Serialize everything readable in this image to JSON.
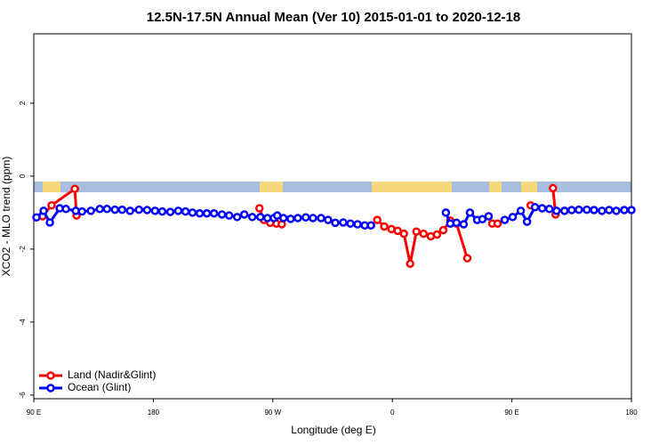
{
  "chart_data": {
    "type": "line",
    "title": "12.5N-17.5N Annual Mean (Ver 10)   2015-01-01 to 2020-12-18",
    "xlabel": "Longitude (deg E)",
    "ylabel": "XCO2 - MLO trend (ppm)",
    "xlim": [
      90,
      540
    ],
    "ylim": [
      -6.1,
      3.9
    ],
    "xticks": [
      {
        "value": 90,
        "label": "90 E"
      },
      180,
      {
        "value": 270,
        "label": "90 W"
      },
      {
        "value": 360,
        "label": "0"
      },
      {
        "value": 450,
        "label": "90 E"
      },
      {
        "value": 540,
        "label": "180"
      }
    ],
    "yticks": [
      -6,
      -4,
      -2,
      0,
      2
    ],
    "legend": "bottom-left",
    "series": [
      {
        "name": "Land (Nadir&Glint)",
        "color": "#ff0000",
        "x": [
          96.7,
          103.4,
          120.9,
          122.2,
          null,
          259.9,
          263.3,
          268.0,
          272.7,
          276.7,
          null,
          348.6,
          353.9,
          359.3,
          364.0,
          368.7,
          373.4,
          378.1,
          383.5,
          388.9,
          393.6,
          398.3,
          403.6,
          408.3,
          416.4,
          null,
          435.2,
          439.2,
          444.6,
          null,
          464.1,
          null,
          480.9,
          482.9
        ],
        "values": [
          -1.1,
          -0.8,
          -0.35,
          -1.08,
          null,
          -0.88,
          -1.2,
          -1.28,
          -1.3,
          -1.32,
          null,
          -1.2,
          -1.38,
          -1.45,
          -1.5,
          -1.58,
          -2.4,
          -1.52,
          -1.58,
          -1.65,
          -1.6,
          -1.48,
          -1.22,
          -1.3,
          -2.25,
          null,
          -1.3,
          -1.3,
          -1.2,
          null,
          -0.8,
          null,
          -0.33,
          -1.05
        ]
      },
      {
        "name": "Ocean (Glint)",
        "color": "#0000ff",
        "x": [
          92.0,
          97.4,
          102.1,
          109.5,
          114.2,
          121.6,
          126.3,
          133.0,
          139.7,
          145.1,
          151.1,
          156.5,
          162.5,
          169.2,
          175.3,
          181.3,
          186.7,
          192.8,
          198.8,
          204.2,
          209.5,
          214.9,
          220.3,
          225.7,
          231.7,
          237.1,
          243.1,
          248.5,
          254.5,
          260.6,
          265.9,
          270.7,
          273.3,
          278.0,
          283.4,
          288.8,
          294.8,
          300.2,
          306.3,
          311.6,
          317.0,
          323.0,
          328.4,
          333.8,
          339.2,
          343.9,
          null,
          400.3,
          403.6,
          408.3,
          413.7,
          418.4,
          423.8,
          427.8,
          432.5,
          null,
          444.6,
          450.6,
          456.7,
          461.4,
          467.4,
          472.8,
          478.2,
          483.6,
          489.6,
          495.0,
          500.4,
          506.4,
          511.8,
          517.8,
          523.2,
          528.6,
          534.6,
          540.0
        ],
        "values": [
          -1.13,
          -0.95,
          -1.27,
          -0.88,
          -0.9,
          -0.95,
          -0.97,
          -0.95,
          -0.9,
          -0.9,
          -0.92,
          -0.92,
          -0.95,
          -0.92,
          -0.93,
          -0.95,
          -0.97,
          -0.98,
          -0.95,
          -0.97,
          -1.0,
          -1.02,
          -1.02,
          -1.02,
          -1.05,
          -1.08,
          -1.12,
          -1.05,
          -1.12,
          -1.12,
          -1.15,
          -1.15,
          -1.08,
          -1.15,
          -1.17,
          -1.15,
          -1.13,
          -1.15,
          -1.15,
          -1.2,
          -1.28,
          -1.27,
          -1.3,
          -1.32,
          -1.35,
          -1.35,
          null,
          -1.0,
          -1.3,
          -1.28,
          -1.32,
          -1.0,
          -1.2,
          -1.18,
          -1.1,
          null,
          -1.2,
          -1.12,
          -0.95,
          -1.25,
          -0.85,
          -0.88,
          -0.9,
          -0.95,
          -0.95,
          -0.93,
          -0.92,
          -0.92,
          -0.93,
          -0.95,
          -0.93,
          -0.95,
          -0.93,
          -0.93
        ]
      }
    ]
  }
}
